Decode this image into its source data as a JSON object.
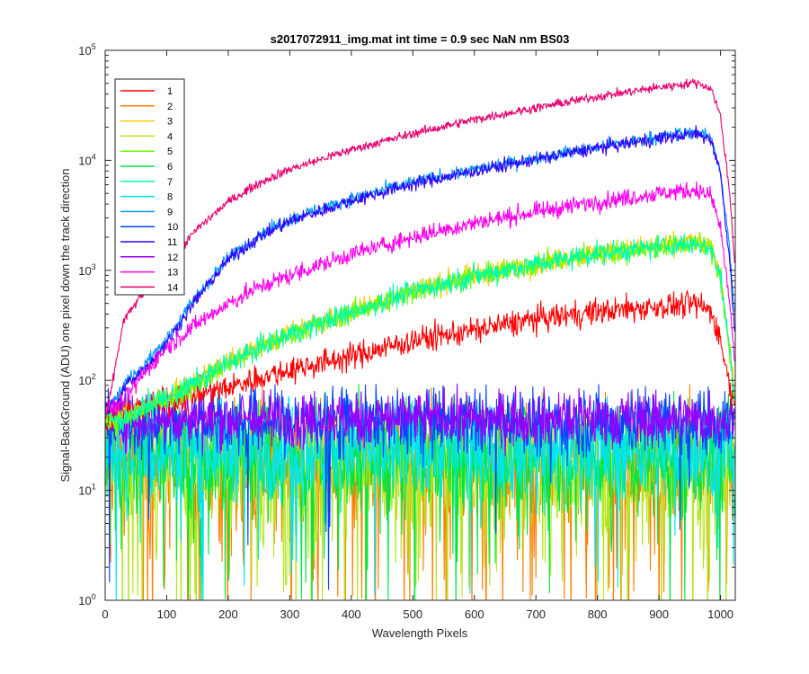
{
  "chart_data": {
    "type": "line",
    "title": "s2017072911_img.mat int time = 0.9 sec  NaN nm BS03",
    "xlabel": "Wavelength Pixels",
    "ylabel": "Signal-BackGround (ADU) one pixel down the track direction",
    "xlim": [
      0,
      1024
    ],
    "ylim": [
      1,
      100000
    ],
    "yscale": "log",
    "xticks": [
      0,
      100,
      200,
      300,
      400,
      500,
      600,
      700,
      800,
      900,
      1000
    ],
    "xtick_labels": [
      "0",
      "100",
      "200",
      "300",
      "400",
      "500",
      "600",
      "700",
      "800",
      "900",
      "1000"
    ],
    "yticks": [
      1,
      10,
      100,
      1000,
      10000,
      100000
    ],
    "ytick_labels": [
      {
        "base": "10",
        "exp": "0"
      },
      {
        "base": "10",
        "exp": "1"
      },
      {
        "base": "10",
        "exp": "2"
      },
      {
        "base": "10",
        "exp": "3"
      },
      {
        "base": "10",
        "exp": "4"
      },
      {
        "base": "10",
        "exp": "5"
      }
    ],
    "legend_position": "top-left",
    "series": [
      {
        "name": "1",
        "color": "#ff0000",
        "kind": "signal",
        "anchors": [
          [
            0,
            50
          ],
          [
            25,
            50
          ],
          [
            80,
            60
          ],
          [
            150,
            75
          ],
          [
            200,
            85
          ],
          [
            250,
            105
          ],
          [
            300,
            125
          ],
          [
            400,
            165
          ],
          [
            500,
            230
          ],
          [
            600,
            285
          ],
          [
            700,
            360
          ],
          [
            800,
            420
          ],
          [
            900,
            470
          ],
          [
            960,
            490
          ],
          [
            985,
            430
          ],
          [
            1000,
            230
          ],
          [
            1015,
            90
          ],
          [
            1023,
            55
          ]
        ],
        "noise": 0.06
      },
      {
        "name": "2",
        "color": "#ff7f00",
        "kind": "noise",
        "level": 18,
        "spread": 0.55,
        "dips": 0.12
      },
      {
        "name": "3",
        "color": "#ffcc00",
        "kind": "signal",
        "anchors": [
          [
            0,
            50
          ],
          [
            20,
            45
          ],
          [
            40,
            50
          ],
          [
            80,
            65
          ],
          [
            120,
            80
          ],
          [
            200,
            150
          ],
          [
            300,
            270
          ],
          [
            400,
            420
          ],
          [
            500,
            650
          ],
          [
            600,
            900
          ],
          [
            700,
            1150
          ],
          [
            800,
            1450
          ],
          [
            900,
            1650
          ],
          [
            960,
            1850
          ],
          [
            985,
            1600
          ],
          [
            1000,
            900
          ],
          [
            1015,
            200
          ],
          [
            1023,
            80
          ]
        ],
        "noise": 0.05
      },
      {
        "name": "4",
        "color": "#b5e61d",
        "kind": "noise",
        "level": 16,
        "spread": 0.55,
        "dips": 0.1
      },
      {
        "name": "5",
        "color": "#66ff00",
        "kind": "signal",
        "anchors": [
          [
            0,
            45
          ],
          [
            20,
            40
          ],
          [
            40,
            45
          ],
          [
            80,
            60
          ],
          [
            120,
            75
          ],
          [
            200,
            140
          ],
          [
            300,
            260
          ],
          [
            400,
            410
          ],
          [
            500,
            640
          ],
          [
            600,
            880
          ],
          [
            700,
            1130
          ],
          [
            800,
            1420
          ],
          [
            900,
            1620
          ],
          [
            960,
            1750
          ],
          [
            985,
            1500
          ],
          [
            1000,
            850
          ],
          [
            1015,
            180
          ],
          [
            1023,
            60
          ]
        ],
        "noise": 0.05
      },
      {
        "name": "6",
        "color": "#00e640",
        "kind": "noise",
        "level": 20,
        "spread": 0.5,
        "dips": 0.06
      },
      {
        "name": "7",
        "color": "#00ffaa",
        "kind": "signal",
        "anchors": [
          [
            0,
            48
          ],
          [
            20,
            42
          ],
          [
            40,
            48
          ],
          [
            80,
            62
          ],
          [
            120,
            78
          ],
          [
            200,
            145
          ],
          [
            300,
            265
          ],
          [
            400,
            415
          ],
          [
            500,
            645
          ],
          [
            600,
            890
          ],
          [
            700,
            1140
          ],
          [
            800,
            1430
          ],
          [
            900,
            1640
          ],
          [
            960,
            1780
          ],
          [
            985,
            1550
          ],
          [
            1000,
            880
          ],
          [
            1015,
            190
          ],
          [
            1023,
            70
          ]
        ],
        "noise": 0.05
      },
      {
        "name": "8",
        "color": "#00e5ee",
        "kind": "noise",
        "level": 24,
        "spread": 0.45,
        "dips": 0.04
      },
      {
        "name": "9",
        "color": "#0099ff",
        "kind": "signal",
        "anchors": [
          [
            0,
            60
          ],
          [
            20,
            70
          ],
          [
            35,
            100
          ],
          [
            60,
            130
          ],
          [
            100,
            240
          ],
          [
            150,
            600
          ],
          [
            200,
            1300
          ],
          [
            250,
            2100
          ],
          [
            300,
            2900
          ],
          [
            400,
            4500
          ],
          [
            500,
            6300
          ],
          [
            600,
            8200
          ],
          [
            700,
            10500
          ],
          [
            800,
            13200
          ],
          [
            900,
            16300
          ],
          [
            960,
            18200
          ],
          [
            985,
            16000
          ],
          [
            1000,
            8000
          ],
          [
            1015,
            1500
          ],
          [
            1023,
            400
          ]
        ],
        "noise": 0.03
      },
      {
        "name": "10",
        "color": "#0044ff",
        "kind": "noise",
        "level": 42,
        "spread": 0.3,
        "dips": 0.01
      },
      {
        "name": "11",
        "color": "#3300ff",
        "kind": "signal",
        "anchors": [
          [
            0,
            55
          ],
          [
            20,
            60
          ],
          [
            35,
            95
          ],
          [
            60,
            120
          ],
          [
            100,
            220
          ],
          [
            150,
            560
          ],
          [
            200,
            1250
          ],
          [
            250,
            2000
          ],
          [
            300,
            2800
          ],
          [
            400,
            4300
          ],
          [
            500,
            6100
          ],
          [
            600,
            8000
          ],
          [
            700,
            10200
          ],
          [
            800,
            12900
          ],
          [
            900,
            15800
          ],
          [
            960,
            17500
          ],
          [
            985,
            15500
          ],
          [
            1000,
            7500
          ],
          [
            1015,
            1200
          ],
          [
            1023,
            300
          ]
        ],
        "noise": 0.03
      },
      {
        "name": "12",
        "color": "#9900ff",
        "kind": "noise",
        "level": 45,
        "spread": 0.25,
        "dips": 0.0
      },
      {
        "name": "13",
        "color": "#ff00ee",
        "kind": "signal",
        "anchors": [
          [
            0,
            55
          ],
          [
            20,
            58
          ],
          [
            35,
            70
          ],
          [
            60,
            110
          ],
          [
            100,
            200
          ],
          [
            150,
            330
          ],
          [
            200,
            500
          ],
          [
            250,
            700
          ],
          [
            300,
            900
          ],
          [
            400,
            1400
          ],
          [
            500,
            2000
          ],
          [
            600,
            2700
          ],
          [
            700,
            3400
          ],
          [
            800,
            4200
          ],
          [
            900,
            5000
          ],
          [
            960,
            5400
          ],
          [
            985,
            4700
          ],
          [
            1000,
            2400
          ],
          [
            1015,
            500
          ],
          [
            1023,
            150
          ]
        ],
        "noise": 0.04
      },
      {
        "name": "14",
        "color": "#e6006e",
        "kind": "signal",
        "anchors": [
          [
            0,
            40
          ],
          [
            15,
            120
          ],
          [
            30,
            350
          ],
          [
            60,
            600
          ],
          [
            100,
            1100
          ],
          [
            150,
            2400
          ],
          [
            200,
            4200
          ],
          [
            250,
            6200
          ],
          [
            300,
            8300
          ],
          [
            400,
            12500
          ],
          [
            500,
            17500
          ],
          [
            600,
            23500
          ],
          [
            700,
            30000
          ],
          [
            800,
            38000
          ],
          [
            900,
            46000
          ],
          [
            960,
            51000
          ],
          [
            985,
            45000
          ],
          [
            1000,
            25000
          ],
          [
            1015,
            5000
          ],
          [
            1023,
            1200
          ]
        ],
        "noise": 0.02
      }
    ]
  }
}
